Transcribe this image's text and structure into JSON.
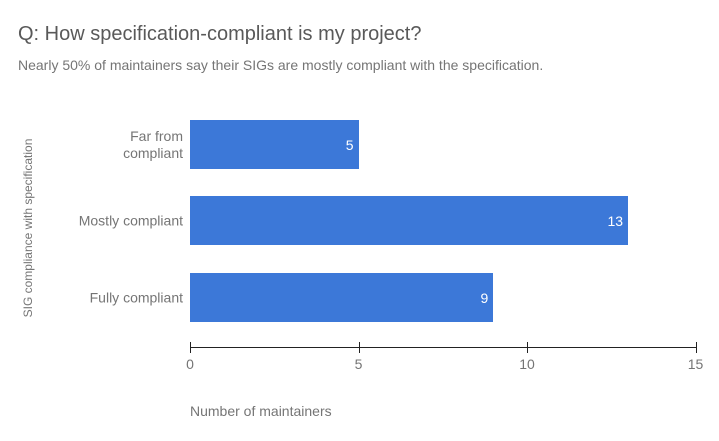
{
  "chart_data": {
    "type": "bar",
    "orientation": "horizontal",
    "title": "Q: How specification-compliant is my project?",
    "subtitle": "Nearly 50% of maintainers say their SIGs are mostly compliant with the specification.",
    "categories": [
      "Far from compliant",
      "Mostly compliant",
      "Fully compliant"
    ],
    "values": [
      5,
      13,
      9
    ],
    "xlabel": "Number of maintainers",
    "ylabel": "SIG compliance with specification",
    "xlim": [
      0,
      15
    ],
    "xticks": [
      0,
      5,
      10,
      15
    ],
    "grid": false,
    "legend": "none",
    "colors": {
      "bar": "#3c78d8",
      "value_label": "#ffffff",
      "axis_line": "#222222",
      "muted_text": "#757575",
      "title_text": "#595959"
    }
  }
}
